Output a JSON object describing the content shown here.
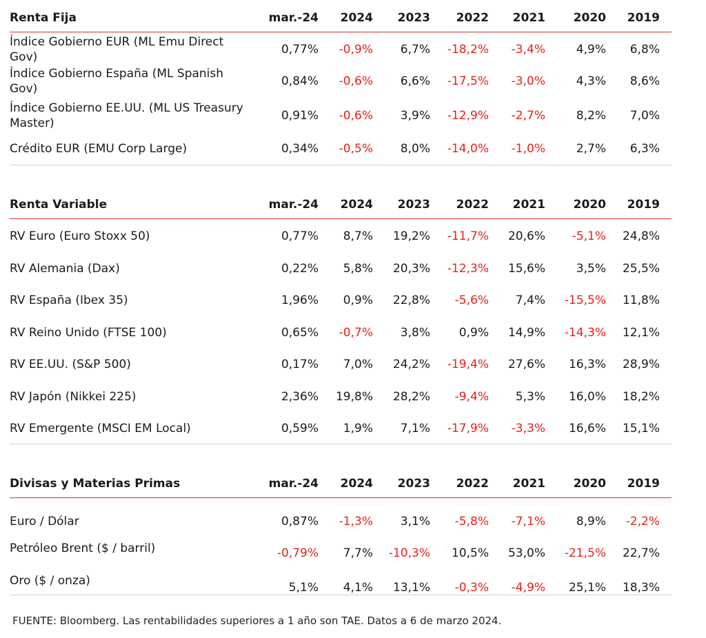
{
  "sections": [
    {
      "title": "Renta Fija",
      "columns": [
        "mar.-24",
        "2024",
        "2023",
        "2022",
        "2021",
        "2020",
        "2019"
      ],
      "rows": [
        {
          "label": "Índice Gobierno EUR (ML Emu Direct Gov)",
          "values": [
            "0,77%",
            "-0,9%",
            "6,7%",
            "-18,2%",
            "-3,4%",
            "4,9%",
            "6,8%"
          ]
        },
        {
          "label": "Índice Gobierno España (ML Spanish Gov)",
          "values": [
            "0,84%",
            "-0,6%",
            "6,6%",
            "-17,5%",
            "-3,0%",
            "4,3%",
            "8,6%"
          ]
        },
        {
          "label": "Índice Gobierno EE.UU. (ML US Treasury Master)",
          "values": [
            "0,91%",
            "-0,6%",
            "3,9%",
            "-12,9%",
            "-2,7%",
            "8,2%",
            "7,0%"
          ]
        },
        {
          "label": "Crédito EUR (EMU Corp Large)",
          "values": [
            "0,34%",
            "-0,5%",
            "8,0%",
            "-14,0%",
            "-1,0%",
            "2,7%",
            "6,3%"
          ]
        }
      ]
    },
    {
      "title": "Renta Variable",
      "columns": [
        "mar.-24",
        "2024",
        "2023",
        "2022",
        "2021",
        "2020",
        "2019"
      ],
      "rows": [
        {
          "label": "RV Euro (Euro Stoxx 50)",
          "values": [
            "0,77%",
            "8,7%",
            "19,2%",
            "-11,7%",
            "20,6%",
            "-5,1%",
            "24,8%"
          ]
        },
        {
          "label": "RV Alemania (Dax)",
          "values": [
            "0,22%",
            "5,8%",
            "20,3%",
            "-12,3%",
            "15,6%",
            "3,5%",
            "25,5%"
          ]
        },
        {
          "label": "RV España (Ibex 35)",
          "values": [
            "1,96%",
            "0,9%",
            "22,8%",
            "-5,6%",
            "7,4%",
            "-15,5%",
            "11,8%"
          ]
        },
        {
          "label": "RV Reino Unido (FTSE 100)",
          "values": [
            "0,65%",
            "-0,7%",
            "3,8%",
            "0,9%",
            "14,9%",
            "-14,3%",
            "12,1%"
          ]
        },
        {
          "label": "RV EE.UU. (S&P 500)",
          "values": [
            "0,17%",
            "7,0%",
            "24,2%",
            "-19,4%",
            "27,6%",
            "16,3%",
            "28,9%"
          ]
        },
        {
          "label": "RV Japón (Nikkei 225)",
          "values": [
            "2,36%",
            "19,8%",
            "28,2%",
            "-9,4%",
            "5,3%",
            "16,0%",
            "18,2%"
          ]
        },
        {
          "label": "RV Emergente (MSCI EM Local)",
          "values": [
            "0,59%",
            "1,9%",
            "7,1%",
            "-17,9%",
            "-3,3%",
            "16,6%",
            "15,1%"
          ]
        }
      ]
    },
    {
      "title": "Divisas y Materias Primas",
      "columns": [
        "mar.-24",
        "2024",
        "2023",
        "2022",
        "2021",
        "2020",
        "2019"
      ],
      "rows": [
        {
          "label": "Euro / Dólar",
          "values": [
            "0,87%",
            "-1,3%",
            "3,1%",
            "-5,8%",
            "-7,1%",
            "8,9%",
            "-2,2%"
          ]
        },
        {
          "label": "Petróleo Brent ($ / barril)",
          "values": [
            "-0,79%",
            "7,7%",
            "-10,3%",
            "10,5%",
            "53,0%",
            "-21,5%",
            "22,7%"
          ]
        },
        {
          "label": "Oro ($ / onza)",
          "values": [
            "5,1%",
            "4,1%",
            "13,1%",
            "-0,3%",
            "-4,9%",
            "25,1%",
            "18,3%"
          ]
        }
      ]
    }
  ],
  "colors": {
    "negative": "#e8201a",
    "header_rule": "#d9302c"
  },
  "footnote": "FUENTE: Bloomberg. Las rentabilidades superiores a 1 año son TAE.  Datos a 6 de marzo 2024."
}
